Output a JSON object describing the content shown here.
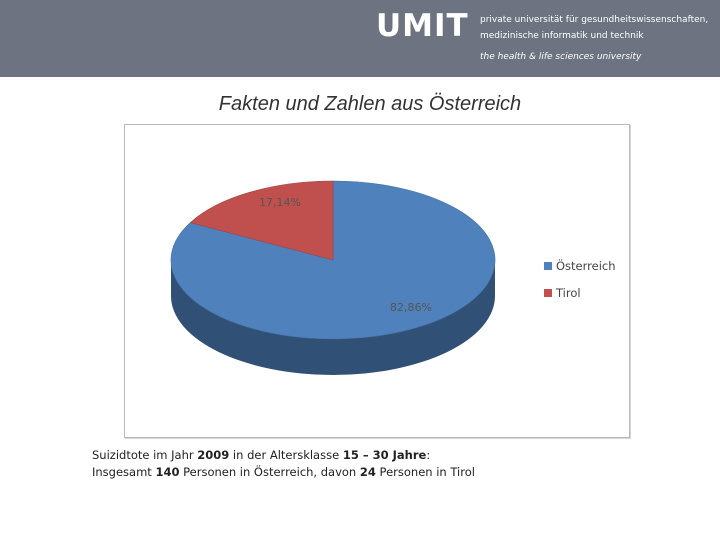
{
  "header": {
    "logo": "UMIT",
    "tagline_1": "private universität für gesundheitswissenschaften,",
    "tagline_2": "medizinische informatik und technik",
    "tagline_3": "the health & life sciences university",
    "band_color": "#6d7380"
  },
  "slide": {
    "title": "Fakten und Zahlen aus Österreich"
  },
  "chart_data": {
    "type": "pie",
    "style": "3d",
    "title": "",
    "labels": [
      "Österreich",
      "Tirol"
    ],
    "values": [
      82.86,
      17.14
    ],
    "data_labels": [
      "82,86%",
      "17,14%"
    ],
    "colors": [
      "#4f81bd",
      "#c0504d"
    ],
    "legend_position": "right",
    "legend_entries": [
      "Österreich",
      "Tirol"
    ]
  },
  "caption": {
    "line1_a": "Suizidtote im Jahr ",
    "line1_b": "2009",
    "line1_c": " in der Altersklasse ",
    "line1_d": "15 – 30 Jahre",
    "line1_e": ":",
    "line2_a": "Insgesamt ",
    "line2_b": "140",
    "line2_c": " Personen in Österreich, davon ",
    "line2_d": "24",
    "line2_e": " Personen in Tirol"
  }
}
